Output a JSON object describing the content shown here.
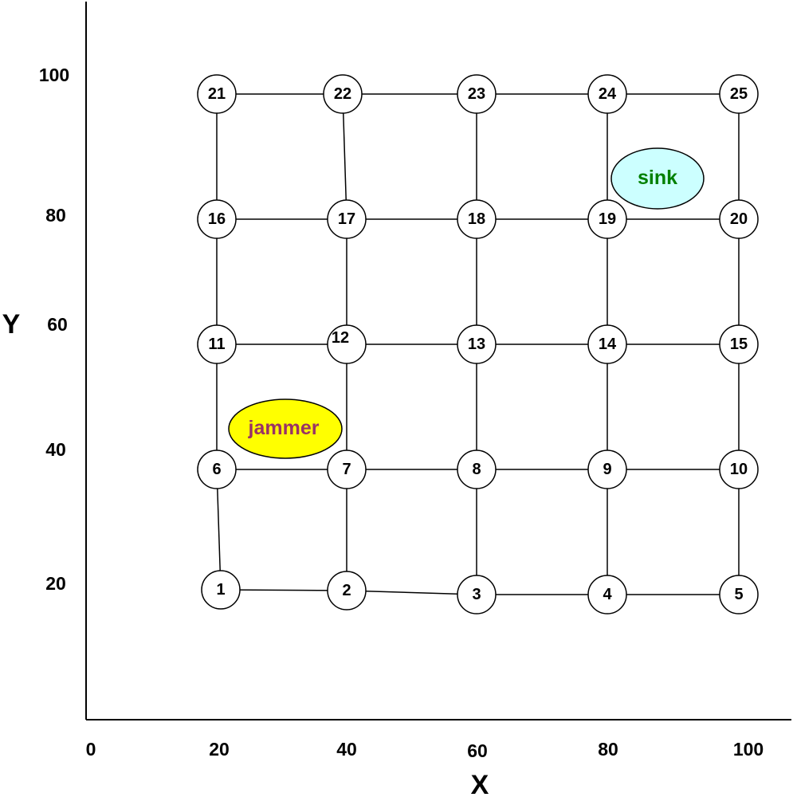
{
  "axes": {
    "x_title": "X",
    "y_title": "Y",
    "x_ticks": [
      "0",
      "20",
      "40",
      "60",
      "80",
      "100"
    ],
    "y_ticks": [
      "20",
      "40",
      "60",
      "80",
      "100"
    ]
  },
  "nodes": [
    {
      "label": "1"
    },
    {
      "label": "2"
    },
    {
      "label": "3"
    },
    {
      "label": "4"
    },
    {
      "label": "5"
    },
    {
      "label": "6"
    },
    {
      "label": "7"
    },
    {
      "label": "8"
    },
    {
      "label": "9"
    },
    {
      "label": "10"
    },
    {
      "label": "11"
    },
    {
      "label": "12"
    },
    {
      "label": "13"
    },
    {
      "label": "14"
    },
    {
      "label": "15"
    },
    {
      "label": "16"
    },
    {
      "label": "17"
    },
    {
      "label": "18"
    },
    {
      "label": "19"
    },
    {
      "label": "20"
    },
    {
      "label": "21"
    },
    {
      "label": "22"
    },
    {
      "label": "23"
    },
    {
      "label": "24"
    },
    {
      "label": "25"
    }
  ],
  "edges": [
    [
      "1",
      "2"
    ],
    [
      "2",
      "3"
    ],
    [
      "3",
      "4"
    ],
    [
      "4",
      "5"
    ],
    [
      "6",
      "7"
    ],
    [
      "7",
      "8"
    ],
    [
      "8",
      "9"
    ],
    [
      "9",
      "10"
    ],
    [
      "11",
      "12"
    ],
    [
      "12",
      "13"
    ],
    [
      "13",
      "14"
    ],
    [
      "14",
      "15"
    ],
    [
      "16",
      "17"
    ],
    [
      "17",
      "18"
    ],
    [
      "18",
      "19"
    ],
    [
      "19",
      "20"
    ],
    [
      "21",
      "22"
    ],
    [
      "22",
      "23"
    ],
    [
      "23",
      "24"
    ],
    [
      "24",
      "25"
    ],
    [
      "1",
      "6"
    ],
    [
      "6",
      "11"
    ],
    [
      "11",
      "16"
    ],
    [
      "16",
      "21"
    ],
    [
      "2",
      "7"
    ],
    [
      "7",
      "12"
    ],
    [
      "12",
      "17"
    ],
    [
      "17",
      "22"
    ],
    [
      "3",
      "8"
    ],
    [
      "8",
      "13"
    ],
    [
      "13",
      "18"
    ],
    [
      "18",
      "23"
    ],
    [
      "4",
      "9"
    ],
    [
      "9",
      "14"
    ],
    [
      "14",
      "19"
    ],
    [
      "19",
      "24"
    ],
    [
      "5",
      "10"
    ],
    [
      "10",
      "15"
    ],
    [
      "15",
      "20"
    ],
    [
      "20",
      "25"
    ]
  ],
  "jammer": {
    "label": "jammer",
    "fill_color": "#ffff00",
    "text_color": "#993366"
  },
  "sink": {
    "label": "sink",
    "fill_color": "#ccffff",
    "text_color": "#008000"
  }
}
